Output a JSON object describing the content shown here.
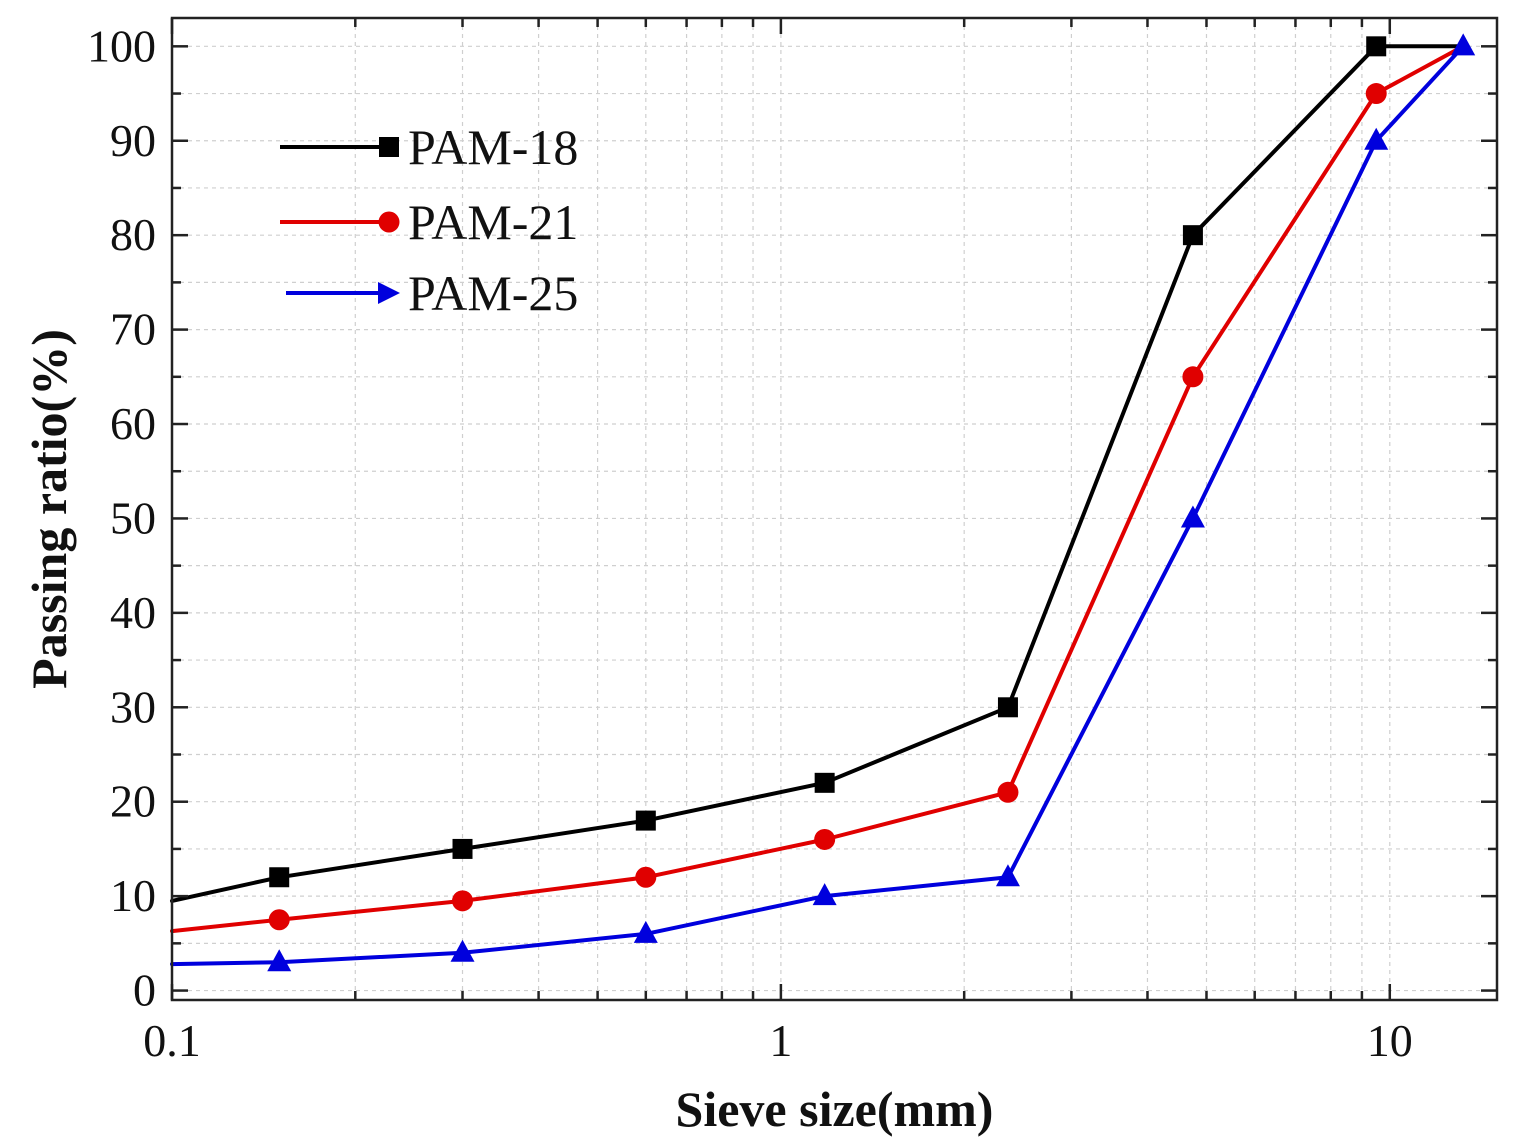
{
  "chart_data": {
    "type": "line",
    "title": "",
    "xlabel": "Sieve size(mm)",
    "ylabel": "Passing ratio(%)",
    "x_scale": "log",
    "xlim": [
      0.1,
      15
    ],
    "ylim": [
      -1,
      103
    ],
    "x_ticks": [
      0.1,
      1,
      10
    ],
    "x_tick_labels": [
      "0.1",
      "1",
      "10"
    ],
    "y_ticks": [
      0,
      10,
      20,
      30,
      40,
      50,
      60,
      70,
      80,
      90,
      100
    ],
    "y_tick_labels": [
      "0",
      "10",
      "20",
      "30",
      "40",
      "50",
      "60",
      "70",
      "80",
      "90",
      "100"
    ],
    "grid": true,
    "legend_position": "top-left",
    "series": [
      {
        "name": "PAM-18",
        "color": "#000000",
        "marker": "square",
        "x": [
          0.1,
          0.15,
          0.3,
          0.6,
          1.18,
          2.36,
          4.75,
          9.5,
          13.2
        ],
        "y": [
          9.5,
          12,
          15,
          18,
          22,
          30,
          80,
          100,
          100
        ],
        "marked": [
          false,
          true,
          true,
          true,
          true,
          true,
          true,
          true,
          false
        ]
      },
      {
        "name": "PAM-21",
        "color": "#e00000",
        "marker": "circle",
        "x": [
          0.1,
          0.15,
          0.3,
          0.6,
          1.18,
          2.36,
          4.75,
          9.5,
          13.2
        ],
        "y": [
          6.3,
          7.5,
          9.5,
          12,
          16,
          21,
          65,
          95,
          100
        ],
        "marked": [
          false,
          true,
          true,
          true,
          true,
          true,
          true,
          true,
          false
        ]
      },
      {
        "name": "PAM-25",
        "color": "#0000dd",
        "marker": "triangle",
        "x": [
          0.1,
          0.15,
          0.3,
          0.6,
          1.18,
          2.36,
          4.75,
          9.5,
          13.2
        ],
        "y": [
          2.8,
          3,
          4,
          6,
          10,
          12,
          50,
          90,
          100
        ],
        "marked": [
          false,
          true,
          true,
          true,
          true,
          true,
          true,
          true,
          true
        ]
      }
    ]
  }
}
